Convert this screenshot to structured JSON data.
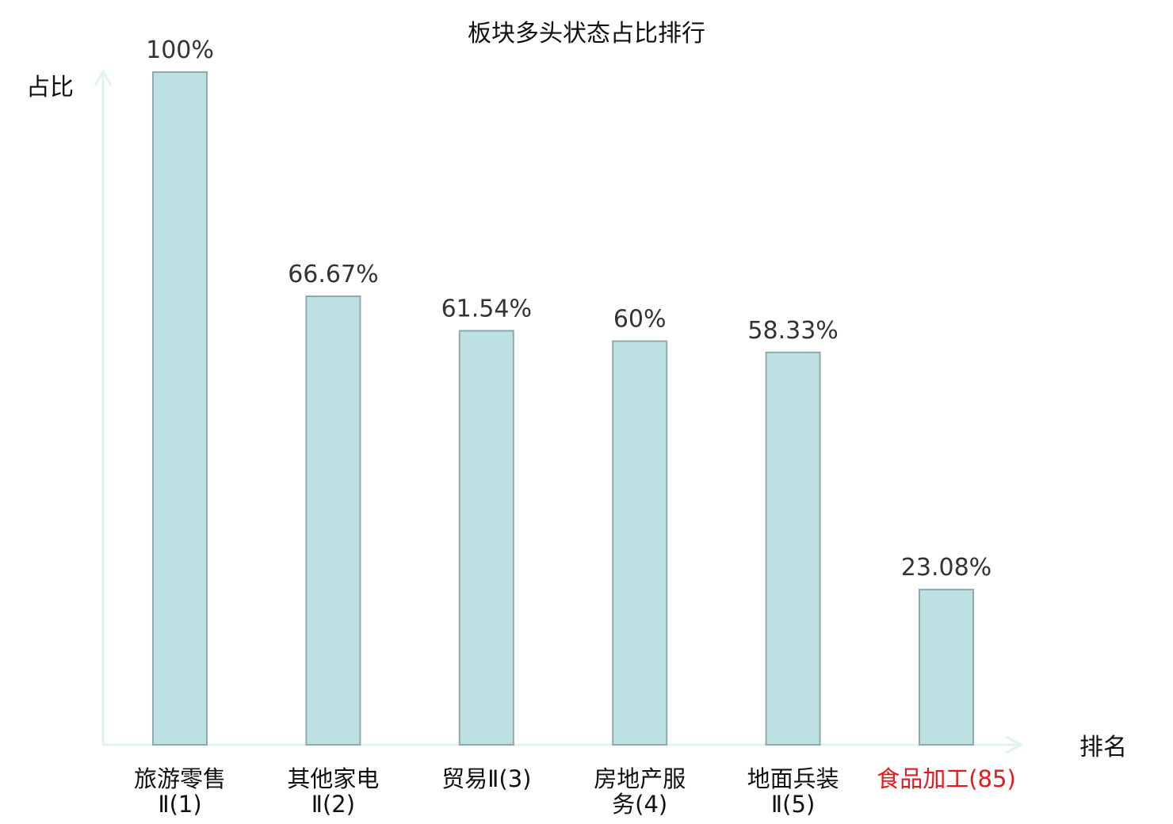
{
  "chart_data": {
    "type": "bar",
    "title": "板块多头状态占比排行",
    "ylabel": "占比",
    "xlabel": "排名",
    "ylim": [
      0,
      100
    ],
    "grid": false,
    "legend": "none",
    "categories": [
      {
        "name": "旅游零售",
        "code": "Ⅱ(1)",
        "lines": [
          "旅游零售",
          "Ⅱ(1)"
        ],
        "highlight": false
      },
      {
        "name": "其他家电",
        "code": "Ⅱ(2)",
        "lines": [
          "其他家电",
          "Ⅱ(2)"
        ],
        "highlight": false
      },
      {
        "name": "贸易",
        "code": "Ⅱ(3)",
        "lines": [
          "贸易Ⅱ(3)"
        ],
        "highlight": false
      },
      {
        "name": "房地产服",
        "code": "务(4)",
        "lines": [
          "房地产服",
          "务(4)"
        ],
        "highlight": false
      },
      {
        "name": "地面兵装",
        "code": "Ⅱ(5)",
        "lines": [
          "地面兵装",
          "Ⅱ(5)"
        ],
        "highlight": false
      },
      {
        "name": "食品加工",
        "code": "(85)",
        "lines": [
          "食品加工(85)"
        ],
        "highlight": true
      }
    ],
    "values": [
      100,
      66.67,
      61.54,
      60,
      58.33,
      23.08
    ],
    "value_labels": [
      "100%",
      "66.67%",
      "61.54%",
      "60%",
      "58.33%",
      "23.08%"
    ],
    "colors": {
      "bar_fill": "#bde0e3",
      "bar_stroke": "#8fa9ad",
      "axis": "#e1f3f1",
      "highlight_text": "#e8171d",
      "label_text": "#333333"
    }
  }
}
